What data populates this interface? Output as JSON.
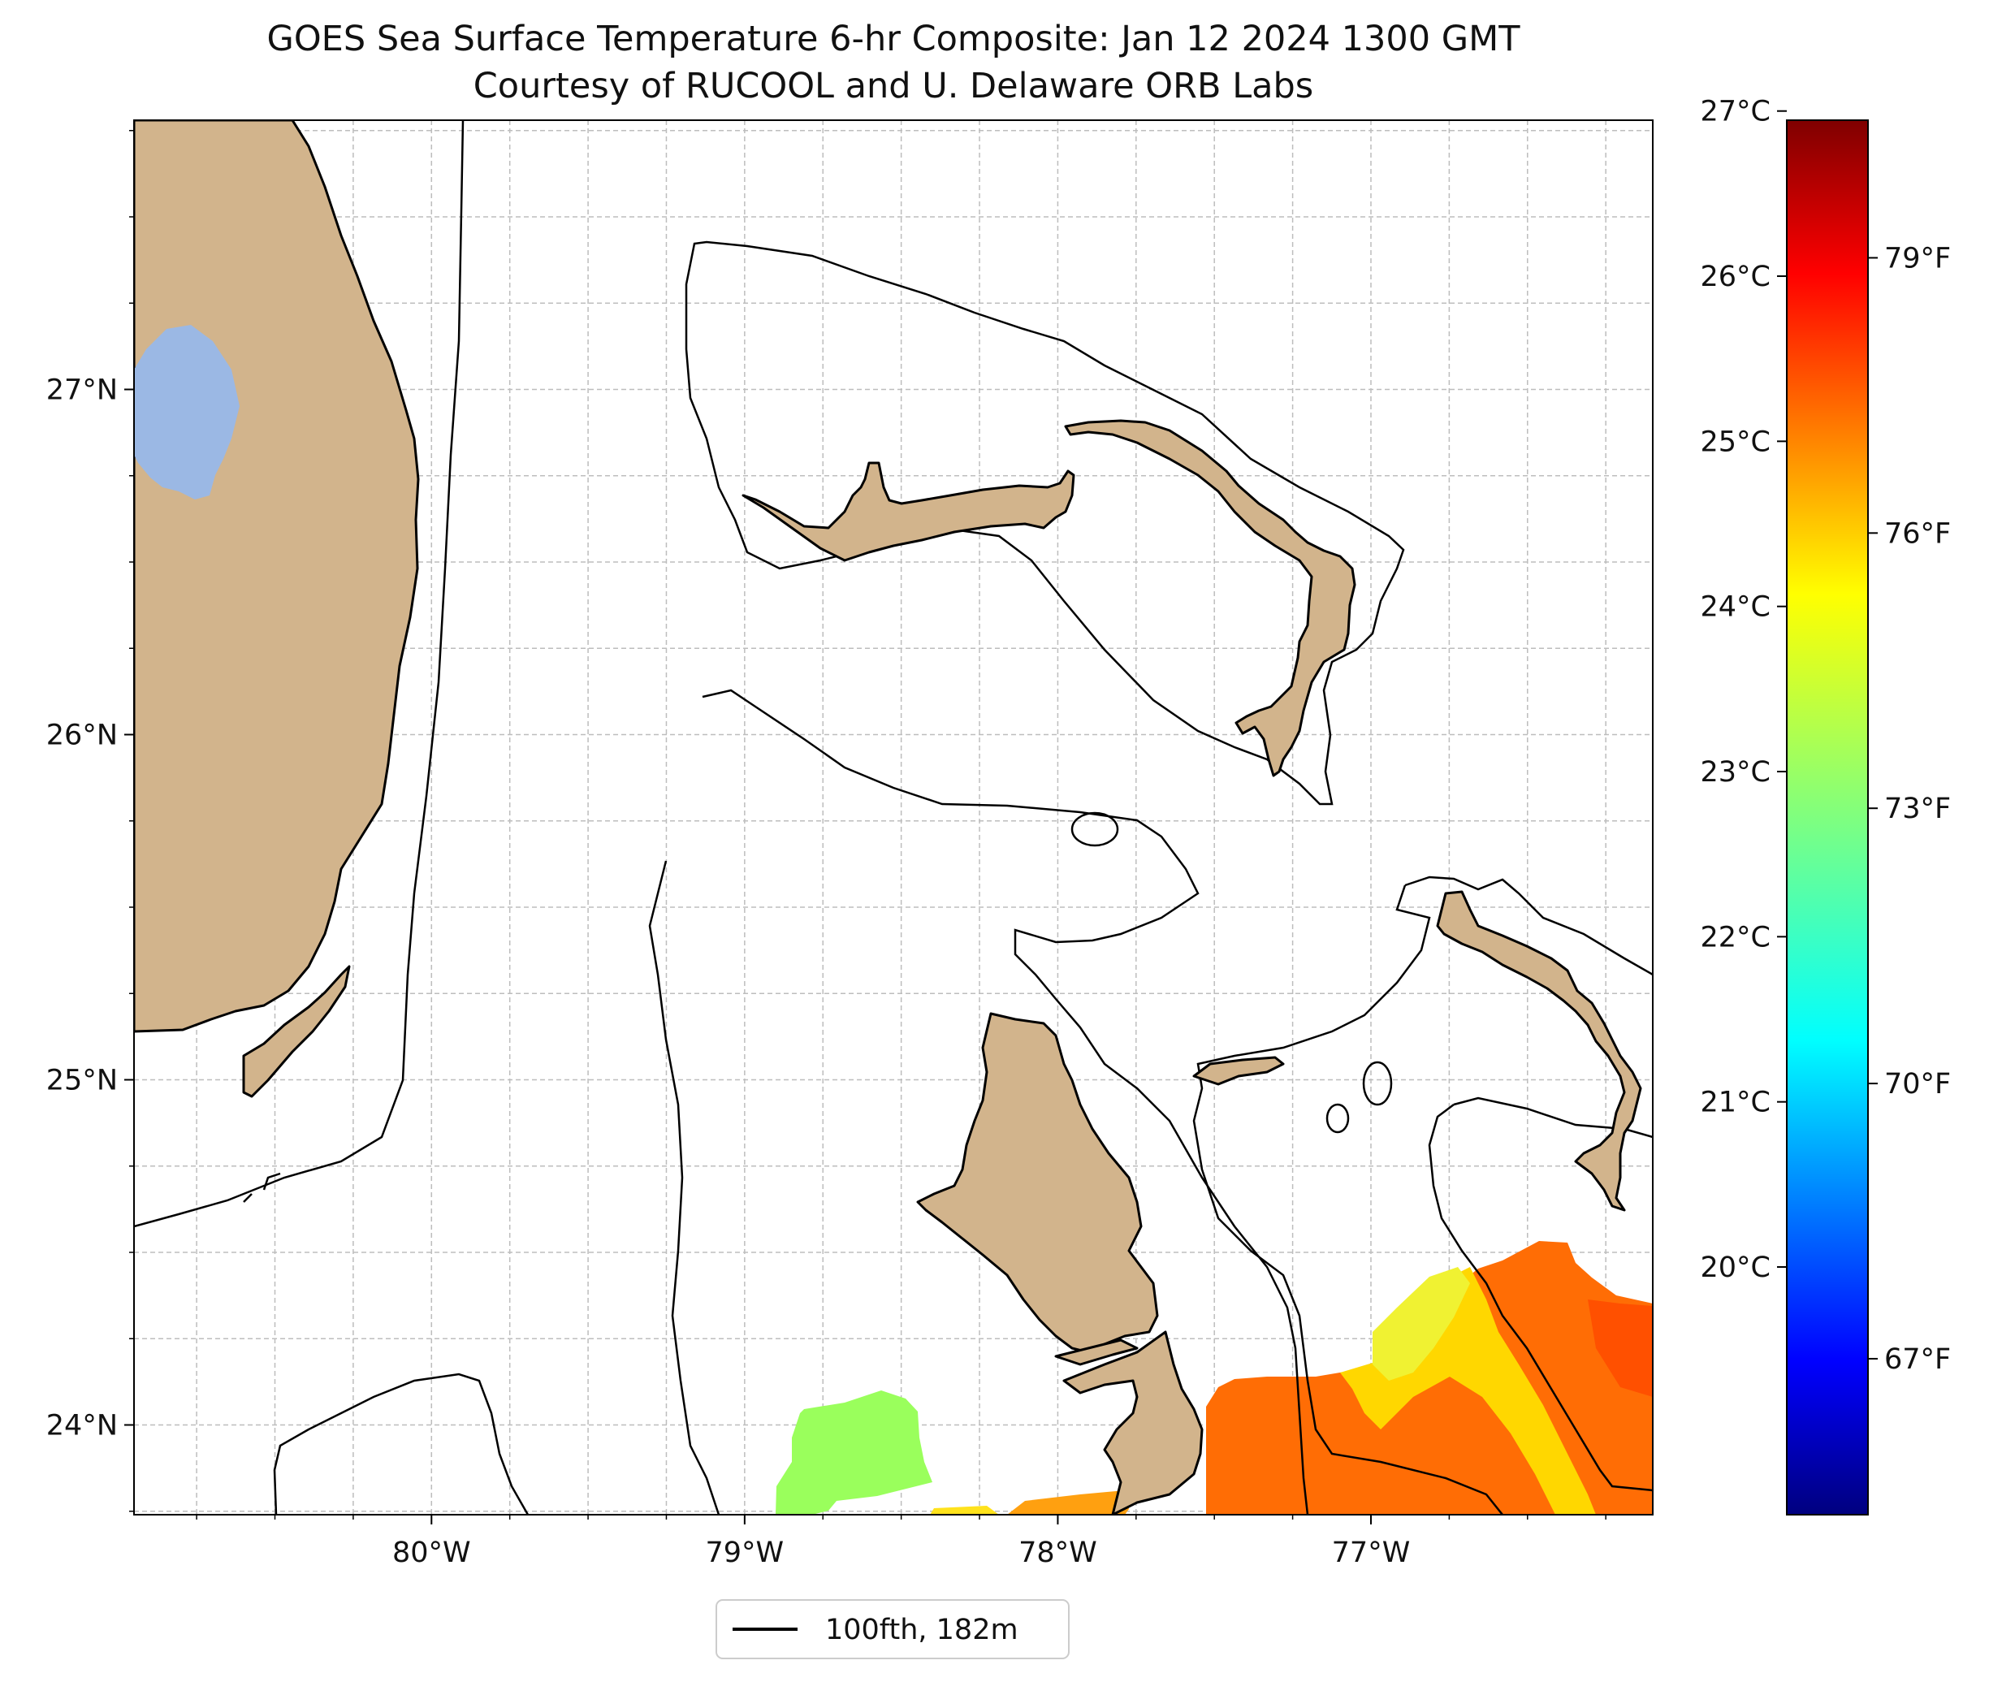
{
  "title": {
    "line1": "GOES Sea Surface Temperature 6-hr Composite: Jan 12 2024 1300 GMT",
    "line2": "Courtesy of RUCOOL and U. Delaware ORB Labs"
  },
  "map": {
    "lon_range": [
      -80.95,
      -76.1
    ],
    "lat_range": [
      23.74,
      27.78
    ],
    "lat_ticks": [
      {
        "value": 27,
        "label": "27°N"
      },
      {
        "value": 26,
        "label": "26°N"
      },
      {
        "value": 25,
        "label": "25°N"
      },
      {
        "value": 24,
        "label": "24°N"
      }
    ],
    "lon_ticks": [
      {
        "value": -80,
        "label": "80°W"
      },
      {
        "value": -79,
        "label": "79°W"
      },
      {
        "value": -78,
        "label": "78°W"
      },
      {
        "value": -77,
        "label": "77°W"
      }
    ],
    "grid": "dashed",
    "land_color": "#d2b48c",
    "lake_color": "#9bb8e4",
    "contour_color": "#000000"
  },
  "colorbar": {
    "colormap": "jet",
    "celsius_ticks": [
      {
        "value": 27,
        "label": "27°C"
      },
      {
        "value": 26,
        "label": "26°C"
      },
      {
        "value": 25,
        "label": "25°C"
      },
      {
        "value": 24,
        "label": "24°C"
      },
      {
        "value": 23,
        "label": "23°C"
      },
      {
        "value": 22,
        "label": "22°C"
      },
      {
        "value": 21,
        "label": "21°C"
      },
      {
        "value": 20,
        "label": "20°C"
      }
    ],
    "fahrenheit_ticks": [
      {
        "value": 79,
        "label": "79°F"
      },
      {
        "value": 76,
        "label": "76°F"
      },
      {
        "value": 73,
        "label": "73°F"
      },
      {
        "value": 70,
        "label": "70°F"
      },
      {
        "value": 67,
        "label": "67°F"
      }
    ],
    "range_f": [
      65.3,
      80.5
    ]
  },
  "legend": {
    "label": "100fth, 182m"
  }
}
